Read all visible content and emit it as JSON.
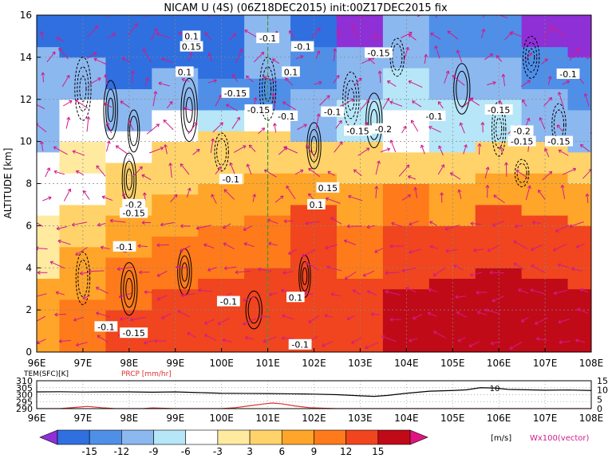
{
  "header": {
    "title": "NICAM U (4S) (06Z18DEC2015) init:00Z17DEC2015 fix"
  },
  "chart_data": [
    {
      "type": "heatmap",
      "title": "NICAM U (4S) (06Z18DEC2015) init:00Z17DEC2015 fix",
      "xlabel": "",
      "ylabel": "ALTITUDE [km]",
      "x_ticks": [
        "96E",
        "97E",
        "98E",
        "99E",
        "100E",
        "101E",
        "102E",
        "103E",
        "104E",
        "105E",
        "106E",
        "107E",
        "108E"
      ],
      "y_ticks": [
        "0",
        "2",
        "4",
        "6",
        "8",
        "10",
        "12",
        "14",
        "16"
      ],
      "xlim": [
        96,
        108
      ],
      "ylim": [
        0,
        16
      ],
      "grid": "dotted",
      "marker_line_lon": 101.0,
      "bands": [
        {
          "lon": 96.0,
          "layers": [
            [
              0,
              3.5,
              "orange"
            ],
            [
              3.5,
              6.5,
              "ltyellow"
            ],
            [
              6.5,
              9.5,
              "white"
            ],
            [
              9.5,
              11.5,
              "ltblue"
            ],
            [
              11.5,
              14.5,
              "ltblue"
            ],
            [
              14.5,
              16,
              "blue"
            ]
          ]
        },
        {
          "lon": 97.0,
          "layers": [
            [
              0,
              2.5,
              "dkorange"
            ],
            [
              2.5,
              5,
              "orange"
            ],
            [
              5,
              7,
              "yellow"
            ],
            [
              7,
              8.5,
              "white"
            ],
            [
              8.5,
              10,
              "ltyellow"
            ],
            [
              10,
              12,
              "white"
            ],
            [
              12,
              14,
              "ltblue"
            ],
            [
              14,
              16,
              "blue"
            ]
          ]
        },
        {
          "lon": 98.0,
          "layers": [
            [
              0,
              2,
              "red"
            ],
            [
              2,
              4.5,
              "dkorange"
            ],
            [
              4.5,
              6.5,
              "orange"
            ],
            [
              6.5,
              9,
              "yellow"
            ],
            [
              9,
              10.5,
              "white"
            ],
            [
              10.5,
              12.5,
              "ltblue"
            ],
            [
              12.5,
              16,
              "blue"
            ]
          ]
        },
        {
          "lon": 99.0,
          "layers": [
            [
              0,
              3,
              "red"
            ],
            [
              3,
              5.5,
              "dkorange"
            ],
            [
              5.5,
              7.5,
              "orange"
            ],
            [
              7.5,
              10,
              "yellow"
            ],
            [
              10,
              11.5,
              "white"
            ],
            [
              11.5,
              13.5,
              "ltblue"
            ],
            [
              13.5,
              16,
              "blue"
            ]
          ]
        },
        {
          "lon": 100.0,
          "layers": [
            [
              0,
              3.5,
              "red"
            ],
            [
              3.5,
              6,
              "dkorange"
            ],
            [
              6,
              8,
              "orange"
            ],
            [
              8,
              10.5,
              "yellow"
            ],
            [
              10.5,
              11.5,
              "cyan"
            ],
            [
              11.5,
              13,
              "medblue"
            ],
            [
              13,
              16,
              "blue"
            ]
          ]
        },
        {
          "lon": 101.0,
          "layers": [
            [
              0,
              4,
              "red"
            ],
            [
              4,
              6.5,
              "dkorange"
            ],
            [
              6.5,
              8.5,
              "orange"
            ],
            [
              8.5,
              10.5,
              "yellow"
            ],
            [
              10.5,
              11.5,
              "white"
            ],
            [
              11.5,
              13,
              "medblue"
            ],
            [
              13,
              16,
              "ltblue"
            ]
          ]
        },
        {
          "lon": 102.0,
          "layers": [
            [
              0,
              4,
              "red"
            ],
            [
              4,
              7,
              "red"
            ],
            [
              7,
              8.5,
              "orange"
            ],
            [
              8.5,
              10,
              "yellow"
            ],
            [
              10,
              12.5,
              "ltblue"
            ],
            [
              12.5,
              14.5,
              "medblue"
            ],
            [
              14.5,
              16,
              "blue"
            ]
          ]
        },
        {
          "lon": 103.0,
          "layers": [
            [
              0,
              3.5,
              "red"
            ],
            [
              3.5,
              6,
              "dkorange"
            ],
            [
              6,
              8,
              "orange"
            ],
            [
              8,
              10,
              "yellow"
            ],
            [
              10,
              12,
              "cyan"
            ],
            [
              12,
              14.5,
              "ltblue"
            ],
            [
              14.5,
              16,
              "purple"
            ]
          ]
        },
        {
          "lon": 104.0,
          "layers": [
            [
              0,
              3,
              "dkred"
            ],
            [
              3,
              6,
              "red"
            ],
            [
              6,
              8,
              "dkorange"
            ],
            [
              8,
              9.5,
              "yellow"
            ],
            [
              9.5,
              11.5,
              "white"
            ],
            [
              11.5,
              13.5,
              "cyan"
            ],
            [
              13.5,
              16,
              "ltblue"
            ]
          ]
        },
        {
          "lon": 105.0,
          "layers": [
            [
              0,
              3.5,
              "dkred"
            ],
            [
              3.5,
              6,
              "red"
            ],
            [
              6,
              8,
              "orange"
            ],
            [
              8,
              9.5,
              "yellow"
            ],
            [
              9.5,
              12,
              "cyan"
            ],
            [
              12,
              14,
              "ltblue"
            ],
            [
              14,
              16,
              "medblue"
            ]
          ]
        },
        {
          "lon": 106.0,
          "layers": [
            [
              0,
              4,
              "dkred"
            ],
            [
              4,
              7,
              "red"
            ],
            [
              7,
              8.5,
              "orange"
            ],
            [
              8.5,
              10,
              "yellow"
            ],
            [
              10,
              12,
              "cyan"
            ],
            [
              12,
              14,
              "ltblue"
            ],
            [
              14,
              16,
              "medblue"
            ]
          ]
        },
        {
          "lon": 107.0,
          "layers": [
            [
              0,
              3.5,
              "dkred"
            ],
            [
              3.5,
              6.5,
              "red"
            ],
            [
              6.5,
              8.5,
              "orange"
            ],
            [
              8.5,
              10,
              "yellow"
            ],
            [
              10,
              12.5,
              "ltblue"
            ],
            [
              12.5,
              14.5,
              "medblue"
            ],
            [
              14.5,
              16,
              "purple"
            ]
          ]
        },
        {
          "lon": 108.0,
          "layers": [
            [
              0,
              3,
              "dkred"
            ],
            [
              3,
              6,
              "red"
            ],
            [
              6,
              8,
              "orange"
            ],
            [
              8,
              9.5,
              "yellow"
            ],
            [
              9.5,
              11.5,
              "ltblue"
            ],
            [
              11.5,
              14,
              "medblue"
            ],
            [
              14,
              16,
              "purple"
            ]
          ]
        }
      ],
      "palette": {
        "purple": "#8f2fd6",
        "blue": "#2f6fe0",
        "medblue": "#4f8fe8",
        "ltblue": "#8cb8f0",
        "cyan": "#b6e6f7",
        "white": "#ffffff",
        "ltyellow": "#ffeaa0",
        "yellow": "#ffd36a",
        "orange": "#ffa52a",
        "dkorange": "#ff7a1a",
        "red": "#f0451e",
        "dkred": "#c10a18"
      },
      "contour_labels": [
        {
          "lon": 97.5,
          "alt": 1.2,
          "text": "-0.1"
        },
        {
          "lon": 98.1,
          "alt": 0.9,
          "text": "-0.15"
        },
        {
          "lon": 97.9,
          "alt": 5.0,
          "text": "-0.1"
        },
        {
          "lon": 98.1,
          "alt": 7.0,
          "text": "-0.2"
        },
        {
          "lon": 98.1,
          "alt": 6.6,
          "text": "-0.15"
        },
        {
          "lon": 100.15,
          "alt": 2.4,
          "text": "-0.1"
        },
        {
          "lon": 100.2,
          "alt": 8.2,
          "text": "-0.1"
        },
        {
          "lon": 99.35,
          "alt": 15.0,
          "text": "0.1"
        },
        {
          "lon": 99.35,
          "alt": 14.5,
          "text": "0.15"
        },
        {
          "lon": 99.2,
          "alt": 13.3,
          "text": "0.1"
        },
        {
          "lon": 100.3,
          "alt": 12.3,
          "text": "-0.15"
        },
        {
          "lon": 101.0,
          "alt": 14.9,
          "text": "-0.1"
        },
        {
          "lon": 101.5,
          "alt": 13.3,
          "text": "0.1"
        },
        {
          "lon": 101.75,
          "alt": 14.5,
          "text": "-0.1"
        },
        {
          "lon": 100.8,
          "alt": 11.5,
          "text": "-0.15"
        },
        {
          "lon": 101.4,
          "alt": 11.2,
          "text": "-0.1"
        },
        {
          "lon": 102.4,
          "alt": 11.4,
          "text": "-0.1"
        },
        {
          "lon": 102.95,
          "alt": 10.5,
          "text": "-0.15"
        },
        {
          "lon": 103.5,
          "alt": 10.6,
          "text": "-0.2"
        },
        {
          "lon": 103.4,
          "alt": 14.2,
          "text": "-0.15"
        },
        {
          "lon": 104.6,
          "alt": 11.2,
          "text": "-0.1"
        },
        {
          "lon": 106.0,
          "alt": 11.5,
          "text": "-0.15"
        },
        {
          "lon": 106.5,
          "alt": 10.5,
          "text": "-0.2"
        },
        {
          "lon": 106.5,
          "alt": 10.0,
          "text": "-0.15"
        },
        {
          "lon": 107.3,
          "alt": 10.0,
          "text": "-0.15"
        },
        {
          "lon": 107.5,
          "alt": 13.2,
          "text": "-0.1"
        },
        {
          "lon": 102.05,
          "alt": 7.0,
          "text": "0.1"
        },
        {
          "lon": 102.3,
          "alt": 7.8,
          "text": "0.15"
        },
        {
          "lon": 101.6,
          "alt": 2.6,
          "text": "0.1"
        },
        {
          "lon": 101.7,
          "alt": 0.35,
          "text": "-0.1"
        }
      ],
      "contours": [
        {
          "lon": 97.0,
          "alt": 3.5,
          "w": 0.3,
          "h": 2.5,
          "n": 2,
          "dashed": true
        },
        {
          "lon": 98.0,
          "alt": 3.0,
          "w": 0.35,
          "h": 2.5,
          "n": 3,
          "dashed": false
        },
        {
          "lon": 99.2,
          "alt": 3.8,
          "w": 0.3,
          "h": 2.2,
          "n": 3,
          "dashed": false
        },
        {
          "lon": 100.7,
          "alt": 2.0,
          "w": 0.35,
          "h": 1.8,
          "n": 2,
          "dashed": false
        },
        {
          "lon": 101.8,
          "alt": 3.6,
          "w": 0.25,
          "h": 2.0,
          "n": 3,
          "dashed": false
        },
        {
          "lon": 98.0,
          "alt": 8.2,
          "w": 0.3,
          "h": 2.5,
          "n": 3,
          "dashed": false
        },
        {
          "lon": 97.0,
          "alt": 12.5,
          "w": 0.35,
          "h": 3.0,
          "n": 3,
          "dashed": true
        },
        {
          "lon": 97.6,
          "alt": 11.5,
          "w": 0.3,
          "h": 2.8,
          "n": 3,
          "dashed": false
        },
        {
          "lon": 98.1,
          "alt": 10.5,
          "w": 0.25,
          "h": 2.0,
          "n": 2,
          "dashed": false
        },
        {
          "lon": 99.3,
          "alt": 11.5,
          "w": 0.35,
          "h": 3.0,
          "n": 3,
          "dashed": false
        },
        {
          "lon": 100.0,
          "alt": 9.5,
          "w": 0.3,
          "h": 1.8,
          "n": 2,
          "dashed": true
        },
        {
          "lon": 101.0,
          "alt": 12.5,
          "w": 0.35,
          "h": 3.0,
          "n": 3,
          "dashed": true
        },
        {
          "lon": 102.0,
          "alt": 9.8,
          "w": 0.3,
          "h": 2.2,
          "n": 3,
          "dashed": false
        },
        {
          "lon": 102.8,
          "alt": 12.0,
          "w": 0.35,
          "h": 2.6,
          "n": 3,
          "dashed": true
        },
        {
          "lon": 103.3,
          "alt": 11.0,
          "w": 0.35,
          "h": 2.6,
          "n": 3,
          "dashed": false
        },
        {
          "lon": 103.8,
          "alt": 14.0,
          "w": 0.3,
          "h": 1.8,
          "n": 2,
          "dashed": true
        },
        {
          "lon": 105.2,
          "alt": 12.5,
          "w": 0.35,
          "h": 2.4,
          "n": 2,
          "dashed": false
        },
        {
          "lon": 106.0,
          "alt": 10.6,
          "w": 0.3,
          "h": 2.6,
          "n": 3,
          "dashed": true
        },
        {
          "lon": 106.7,
          "alt": 14.0,
          "w": 0.35,
          "h": 2.0,
          "n": 3,
          "dashed": true
        },
        {
          "lon": 107.3,
          "alt": 10.8,
          "w": 0.3,
          "h": 2.0,
          "n": 2,
          "dashed": true
        },
        {
          "lon": 106.5,
          "alt": 8.5,
          "w": 0.3,
          "h": 1.3,
          "n": 2,
          "dashed": true
        }
      ],
      "vector_field_note": "Wx100(vector)"
    },
    {
      "type": "line",
      "xlim": [
        96,
        108
      ],
      "x_ticks": [
        "96E",
        "97E",
        "98E",
        "99E",
        "100E",
        "101E",
        "102E",
        "103E",
        "104E",
        "105E",
        "106E",
        "107E",
        "108E"
      ],
      "left_axis": {
        "label": "TEM(SFC)[K]",
        "ticks": [
          "290",
          "295",
          "300",
          "305",
          "310"
        ],
        "ylim": [
          290,
          310
        ]
      },
      "right_axis": {
        "label": "PRCP [mm/hr]",
        "ticks": [
          "0",
          "5",
          "10",
          "15"
        ],
        "ylim": [
          0,
          15
        ]
      },
      "series": [
        {
          "name": "TEM(SFC)[K]",
          "color": "#000000",
          "x": [
            96,
            96.5,
            97,
            97.5,
            98,
            98.5,
            99,
            99.5,
            100,
            100.5,
            101,
            101.5,
            102,
            102.5,
            103,
            103.3,
            103.6,
            104,
            104.5,
            105,
            105.3,
            105.6,
            105.9,
            106.2,
            106.6,
            107,
            107.5,
            108
          ],
          "y": [
            302.0,
            302.1,
            301.9,
            302.0,
            302.0,
            301.8,
            302.0,
            301.5,
            301.0,
            300.9,
            300.8,
            300.6,
            300.4,
            300.0,
            299.2,
            298.8,
            299.5,
            301.0,
            302.5,
            303.0,
            303.5,
            305.0,
            304.8,
            303.8,
            303.5,
            303.2,
            303.4,
            303.0
          ]
        },
        {
          "name": "PRCP [mm/hr]",
          "color": "#e03030",
          "x": [
            96,
            96.5,
            96.8,
            97.1,
            97.4,
            97.7,
            98,
            98.3,
            98.5,
            99,
            99.5,
            100,
            100.3,
            100.6,
            100.9,
            101.1,
            101.3,
            101.6,
            101.9,
            102.2,
            102.5,
            103,
            104,
            105,
            106,
            107,
            108
          ],
          "y": [
            0,
            0,
            0.6,
            1.2,
            0.5,
            0,
            0,
            0,
            0.4,
            0,
            0,
            0,
            0.5,
            1.5,
            2.5,
            3.0,
            2.6,
            1.4,
            0.5,
            0.2,
            0,
            0,
            0,
            0,
            0,
            0,
            0
          ]
        }
      ],
      "annotations": [
        {
          "lon": 105.8,
          "text": "10"
        }
      ]
    },
    {
      "type": "colorbar",
      "ticks": [
        "-15",
        "-12",
        "-9",
        "-6",
        "-3",
        "3",
        "6",
        "9",
        "12",
        "15"
      ],
      "unit": "[m/s]",
      "colors": [
        "#8f2fd6",
        "#2f6fe0",
        "#4f8fe8",
        "#8cb8f0",
        "#b6e6f7",
        "#ffffff",
        "#ffeaa0",
        "#ffd36a",
        "#ffa52a",
        "#ff7a1a",
        "#f0451e",
        "#c10a18",
        "#e0147f"
      ]
    }
  ]
}
